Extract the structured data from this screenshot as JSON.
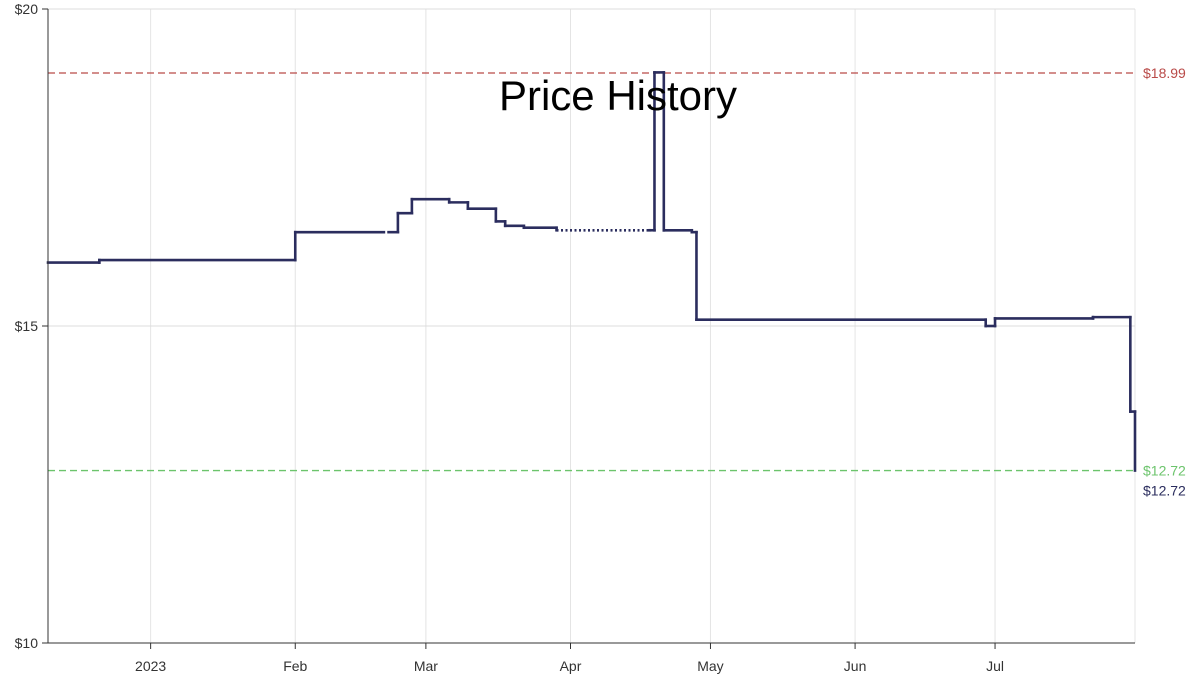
{
  "chart_data": {
    "type": "line",
    "title": "Price History",
    "xlabel": "",
    "ylabel": "",
    "x_range": [
      "2022-12-10",
      "2023-07-31"
    ],
    "ylim": [
      10,
      20
    ],
    "y_ticks": [
      {
        "value": 10,
        "label": "$10"
      },
      {
        "value": 15,
        "label": "$15"
      },
      {
        "value": 20,
        "label": "$20"
      }
    ],
    "x_ticks": [
      {
        "date": "2023-01-01",
        "label": "2023"
      },
      {
        "date": "2023-02-01",
        "label": "Feb"
      },
      {
        "date": "2023-03-01",
        "label": "Mar"
      },
      {
        "date": "2023-04-01",
        "label": "Apr"
      },
      {
        "date": "2023-05-01",
        "label": "May"
      },
      {
        "date": "2023-06-01",
        "label": "Jun"
      },
      {
        "date": "2023-07-01",
        "label": "Jul"
      }
    ],
    "grid": true,
    "step": true,
    "series": [
      {
        "color": "#2b2d5e",
        "points": [
          {
            "date": "2022-12-10",
            "value": 16.0
          },
          {
            "date": "2022-12-21",
            "value": 16.04
          },
          {
            "date": "2023-02-01",
            "value": 16.48
          },
          {
            "date": "2023-02-20",
            "value": null
          },
          {
            "date": "2023-02-21",
            "value": 16.48
          },
          {
            "date": "2023-02-23",
            "value": 16.78
          },
          {
            "date": "2023-02-26",
            "value": 17.0
          },
          {
            "date": "2023-03-06",
            "value": 16.95
          },
          {
            "date": "2023-03-10",
            "value": 16.85
          },
          {
            "date": "2023-03-16",
            "value": 16.65
          },
          {
            "date": "2023-03-18",
            "value": 16.58
          },
          {
            "date": "2023-03-22",
            "value": 16.55
          },
          {
            "date": "2023-03-29",
            "value": 16.51
          },
          {
            "date": "2023-04-18",
            "value": 16.51
          },
          {
            "date": "2023-04-19",
            "value": 19.0
          },
          {
            "date": "2023-04-21",
            "value": 16.51
          },
          {
            "date": "2023-04-27",
            "value": 16.48
          },
          {
            "date": "2023-04-28",
            "value": 15.1
          },
          {
            "date": "2023-06-29",
            "value": 15.0
          },
          {
            "date": "2023-07-01",
            "value": 15.12
          },
          {
            "date": "2023-07-22",
            "value": 15.14
          },
          {
            "date": "2023-07-30",
            "value": 13.65
          },
          {
            "date": "2023-07-31",
            "value": 12.72
          }
        ],
        "dotted_ranges": [
          [
            "2023-03-29",
            "2023-04-18"
          ]
        ]
      }
    ],
    "reference_lines": [
      {
        "value": 18.99,
        "label": "$18.99",
        "color": "#b94a48"
      },
      {
        "value": 12.72,
        "label": "$12.72",
        "color": "#6cc46c"
      }
    ],
    "endpoint_label": {
      "value": 12.72,
      "label": "$12.72",
      "color": "#2b2d5e"
    }
  }
}
